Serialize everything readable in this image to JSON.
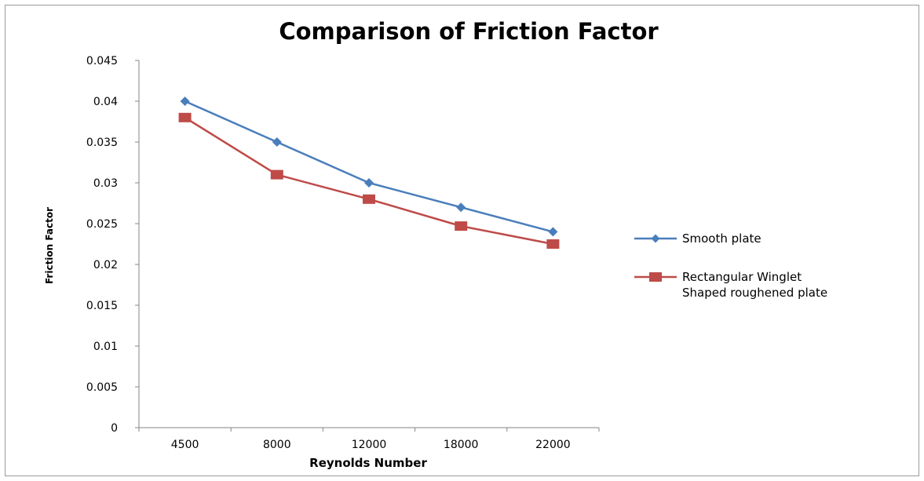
{
  "chart_data": {
    "type": "line",
    "title": "Comparison of Friction Factor",
    "xlabel": "Reynolds Number",
    "ylabel": "Friction Factor",
    "categories": [
      "4500",
      "8000",
      "12000",
      "18000",
      "22000"
    ],
    "ylim": [
      0,
      0.045
    ],
    "yticks": [
      "0",
      "0.005",
      "0.01",
      "0.015",
      "0.02",
      "0.025",
      "0.03",
      "0.035",
      "0.04",
      "0.045"
    ],
    "grid": false,
    "legend_position": "right",
    "series": [
      {
        "name": "Smooth plate",
        "values": [
          0.04,
          0.035,
          0.03,
          0.027,
          0.024
        ],
        "color": "#4a7ebb",
        "marker": "diamond"
      },
      {
        "name_lines": [
          "Rectangular Winglet",
          "Shaped roughened plate"
        ],
        "values": [
          0.038,
          0.031,
          0.028,
          0.0247,
          0.0225
        ],
        "color": "#be4b48",
        "marker": "square"
      }
    ]
  }
}
